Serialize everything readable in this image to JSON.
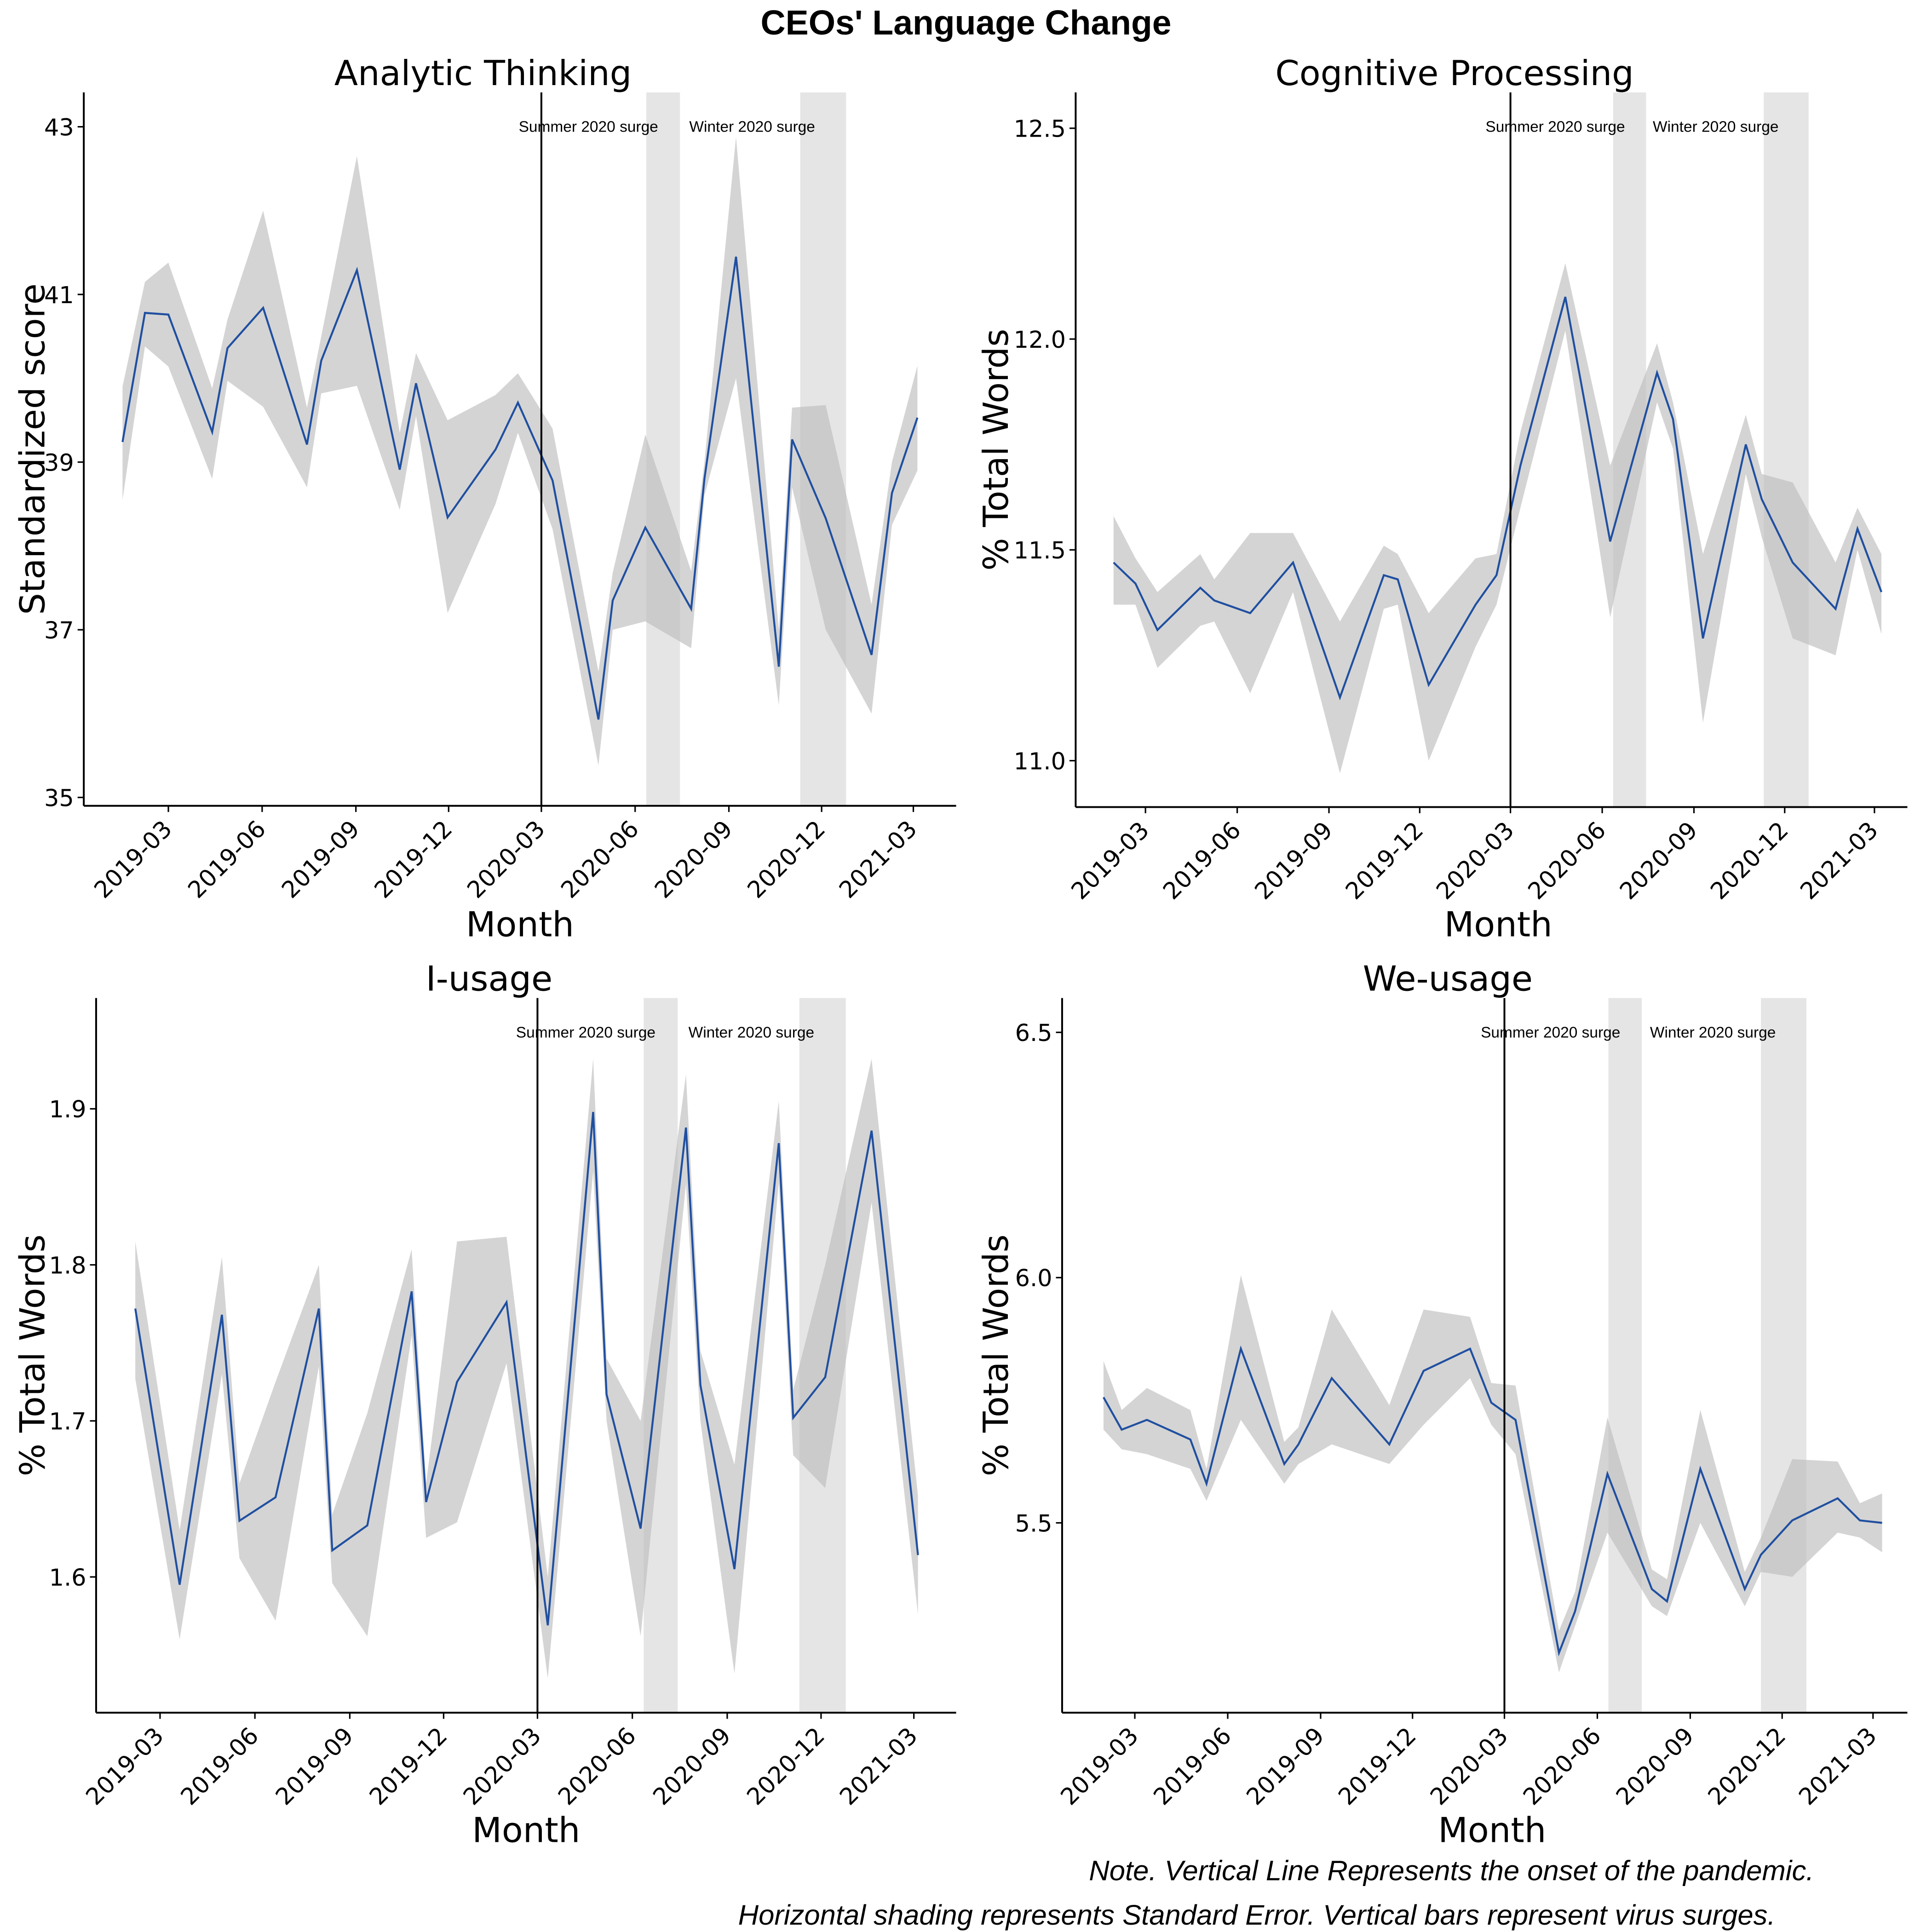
{
  "title": "CEOs' Language Change",
  "notes": [
    "Note. Vertical Line Represents the onset of the pandemic.",
    "Horizontal shading represents Standard Error. Vertical bars represent virus surges."
  ],
  "colors": {
    "line": "#1f4fa0",
    "band": "#bdbdbd",
    "surge": "#e5e5e5",
    "onset": "#000000"
  },
  "chart_data": [
    {
      "type": "line",
      "title": "Analytic Thinking",
      "xlabel": "Month",
      "ylabel": "Standardized score",
      "ylim": [
        34.9,
        43.41
      ],
      "xlim": [
        "2018-12-08",
        "2021-04-12"
      ],
      "yticks": [
        35,
        37,
        39,
        41,
        43
      ],
      "xticks": [
        "2019-03",
        "2019-06",
        "2019-09",
        "2019-12",
        "2020-03",
        "2020-06",
        "2020-09",
        "2020-12",
        "2021-03"
      ],
      "onset": "2020-03-01",
      "surges": [
        {
          "label": "Summer 2020 surge",
          "start": "2020-06-12",
          "end": "2020-07-15"
        },
        {
          "label": "Winter 2020 surge",
          "start": "2020-11-10",
          "end": "2020-12-25"
        }
      ],
      "x": [
        "2019-01-15",
        "2019-02-06",
        "2019-03-01",
        "2019-04-13",
        "2019-04-28",
        "2019-06-02",
        "2019-07-15",
        "2019-07-29",
        "2019-09-02",
        "2019-10-14",
        "2019-10-30",
        "2019-11-30",
        "2020-01-16",
        "2020-02-07",
        "2020-03-12",
        "2020-04-26",
        "2020-05-10",
        "2020-06-11",
        "2020-07-26",
        "2020-08-08",
        "2020-09-08",
        "2020-10-20",
        "2020-11-02",
        "2020-12-05",
        "2021-01-19",
        "2021-02-08",
        "2021-03-05"
      ],
      "y": [
        39.24,
        40.78,
        40.76,
        39.36,
        40.36,
        40.84,
        39.21,
        40.21,
        41.29,
        38.91,
        39.94,
        38.34,
        39.15,
        39.71,
        38.78,
        35.93,
        37.35,
        38.22,
        37.25,
        38.8,
        41.45,
        36.56,
        39.27,
        38.33,
        36.7,
        38.63,
        39.53
      ],
      "lower": [
        38.55,
        40.38,
        40.14,
        38.8,
        39.97,
        39.66,
        38.7,
        39.82,
        39.91,
        38.43,
        39.55,
        37.2,
        38.5,
        39.35,
        38.2,
        35.38,
        37.0,
        37.1,
        36.78,
        38.6,
        40.0,
        36.1,
        38.7,
        37.0,
        36.0,
        38.25,
        38.9
      ],
      "upper": [
        39.9,
        41.15,
        41.38,
        39.88,
        40.7,
        42.0,
        39.65,
        40.5,
        42.65,
        39.35,
        40.3,
        39.5,
        39.8,
        40.06,
        39.4,
        36.5,
        37.68,
        39.33,
        37.7,
        39.0,
        42.88,
        37.0,
        39.65,
        39.68,
        37.3,
        39.0,
        40.15
      ]
    },
    {
      "type": "line",
      "title": "Cognitive Processing",
      "xlabel": "Month",
      "ylabel": "% Total Words",
      "ylim": [
        10.89,
        12.585
      ],
      "xlim": [
        "2018-12-21",
        "2021-04-03"
      ],
      "yticks": [
        11.0,
        11.5,
        12.0,
        12.5
      ],
      "ytick_labels": [
        "11.0",
        "11.5",
        "12.0",
        "12.5"
      ],
      "xticks": [
        "2019-03",
        "2019-06",
        "2019-09",
        "2019-12",
        "2020-03",
        "2020-06",
        "2020-09",
        "2020-12",
        "2021-03"
      ],
      "onset": "2020-03-01",
      "surges": [
        {
          "label": "Summer 2020 surge",
          "start": "2020-06-12",
          "end": "2020-07-15"
        },
        {
          "label": "Winter 2020 surge",
          "start": "2020-11-10",
          "end": "2020-12-25"
        }
      ],
      "x": [
        "2019-01-28",
        "2019-02-19",
        "2019-03-13",
        "2019-04-25",
        "2019-05-09",
        "2019-06-14",
        "2019-07-27",
        "2019-09-12",
        "2019-10-26",
        "2019-11-09",
        "2019-12-10",
        "2020-01-26",
        "2020-02-16",
        "2020-03-11",
        "2020-04-25",
        "2020-06-09",
        "2020-07-26",
        "2020-08-11",
        "2020-09-10",
        "2020-10-23",
        "2020-11-08",
        "2020-12-09",
        "2021-01-21",
        "2021-02-12",
        "2021-03-08"
      ],
      "y": [
        11.47,
        11.42,
        11.31,
        11.41,
        11.38,
        11.35,
        11.47,
        11.15,
        11.44,
        11.43,
        11.18,
        11.37,
        11.44,
        11.7,
        12.1,
        11.52,
        11.92,
        11.81,
        11.29,
        11.75,
        11.62,
        11.47,
        11.36,
        11.55,
        11.4
      ],
      "lower": [
        11.37,
        11.37,
        11.22,
        11.32,
        11.33,
        11.16,
        11.4,
        10.97,
        11.36,
        11.37,
        11.0,
        11.27,
        11.37,
        11.6,
        12.02,
        11.34,
        11.85,
        11.74,
        11.09,
        11.68,
        11.53,
        11.29,
        11.25,
        11.5,
        11.3
      ],
      "upper": [
        11.58,
        11.48,
        11.4,
        11.49,
        11.43,
        11.54,
        11.54,
        11.33,
        11.51,
        11.49,
        11.35,
        11.48,
        11.49,
        11.78,
        12.18,
        11.7,
        11.99,
        11.85,
        11.49,
        11.82,
        11.68,
        11.66,
        11.47,
        11.6,
        11.49
      ]
    },
    {
      "type": "line",
      "title": "I-usage",
      "xlabel": "Month",
      "ylabel": "% Total Words",
      "ylim": [
        1.513,
        1.971
      ],
      "xlim": [
        "2018-12-29",
        "2021-04-11"
      ],
      "yticks": [
        1.6,
        1.7,
        1.8,
        1.9
      ],
      "ytick_labels": [
        "1.6",
        "1.7",
        "1.8",
        "1.9"
      ],
      "xticks": [
        "2019-03",
        "2019-06",
        "2019-09",
        "2019-12",
        "2020-03",
        "2020-06",
        "2020-09",
        "2020-12",
        "2021-03"
      ],
      "onset": "2020-03-01",
      "surges": [
        {
          "label": "Summer 2020 surge",
          "start": "2020-06-12",
          "end": "2020-07-15"
        },
        {
          "label": "Winter 2020 surge",
          "start": "2020-11-10",
          "end": "2020-12-25"
        }
      ],
      "x": [
        "2019-02-05",
        "2019-03-20",
        "2019-04-30",
        "2019-05-17",
        "2019-06-21",
        "2019-08-02",
        "2019-08-15",
        "2019-09-18",
        "2019-10-31",
        "2019-11-14",
        "2019-12-14",
        "2020-01-31",
        "2020-03-11",
        "2020-04-24",
        "2020-05-07",
        "2020-06-09",
        "2020-07-23",
        "2020-08-06",
        "2020-09-08",
        "2020-10-21",
        "2020-11-04",
        "2020-12-05",
        "2021-01-19",
        "2021-03-05"
      ],
      "y": [
        1.772,
        1.595,
        1.768,
        1.636,
        1.651,
        1.772,
        1.617,
        1.633,
        1.783,
        1.648,
        1.725,
        1.776,
        1.569,
        1.898,
        1.717,
        1.631,
        1.888,
        1.723,
        1.605,
        1.878,
        1.702,
        1.728,
        1.886,
        1.614
      ],
      "lower": [
        1.727,
        1.56,
        1.73,
        1.612,
        1.572,
        1.735,
        1.596,
        1.562,
        1.755,
        1.625,
        1.635,
        1.737,
        1.535,
        1.86,
        1.7,
        1.562,
        1.852,
        1.7,
        1.538,
        1.853,
        1.678,
        1.657,
        1.84,
        1.576
      ],
      "upper": [
        1.815,
        1.63,
        1.805,
        1.66,
        1.725,
        1.8,
        1.64,
        1.705,
        1.81,
        1.66,
        1.815,
        1.818,
        1.6,
        1.932,
        1.74,
        1.7,
        1.922,
        1.745,
        1.672,
        1.905,
        1.72,
        1.8,
        1.932,
        1.652
      ]
    },
    {
      "type": "line",
      "title": "We-usage",
      "xlabel": "Month",
      "ylabel": "% Total Words",
      "ylim": [
        5.113,
        6.57
      ],
      "xlim": [
        "2018-12-19",
        "2021-04-04"
      ],
      "yticks": [
        5.5,
        6.0,
        6.5
      ],
      "ytick_labels": [
        "5.5",
        "6.0",
        "6.5"
      ],
      "xticks": [
        "2019-03",
        "2019-06",
        "2019-09",
        "2019-12",
        "2020-03",
        "2020-06",
        "2020-09",
        "2020-12",
        "2021-03"
      ],
      "onset": "2020-03-01",
      "surges": [
        {
          "label": "Summer 2020 surge",
          "start": "2020-06-12",
          "end": "2020-07-15"
        },
        {
          "label": "Winter 2020 surge",
          "start": "2020-11-10",
          "end": "2020-12-25"
        }
      ],
      "x": [
        "2019-01-29",
        "2019-02-16",
        "2019-03-13",
        "2019-04-25",
        "2019-05-11",
        "2019-06-14",
        "2019-07-27",
        "2019-08-10",
        "2019-09-12",
        "2019-11-08",
        "2019-12-12",
        "2020-01-27",
        "2020-02-17",
        "2020-03-12",
        "2020-04-24",
        "2020-05-10",
        "2020-06-11",
        "2020-07-25",
        "2020-08-09",
        "2020-09-11",
        "2020-10-25",
        "2020-11-10",
        "2020-12-11",
        "2021-01-25",
        "2021-02-16",
        "2021-03-10"
      ],
      "y": [
        5.756,
        5.69,
        5.71,
        5.67,
        5.58,
        5.855,
        5.62,
        5.66,
        5.795,
        5.66,
        5.81,
        5.855,
        5.745,
        5.71,
        5.235,
        5.32,
        5.6,
        5.365,
        5.34,
        5.61,
        5.365,
        5.435,
        5.505,
        5.55,
        5.505,
        5.5
      ],
      "lower": [
        5.69,
        5.65,
        5.64,
        5.61,
        5.545,
        5.71,
        5.58,
        5.62,
        5.66,
        5.62,
        5.7,
        5.795,
        5.7,
        5.64,
        5.195,
        5.29,
        5.48,
        5.33,
        5.31,
        5.5,
        5.33,
        5.4,
        5.39,
        5.48,
        5.47,
        5.44
      ],
      "upper": [
        5.83,
        5.73,
        5.775,
        5.73,
        5.61,
        6.005,
        5.665,
        5.695,
        5.935,
        5.74,
        5.935,
        5.92,
        5.785,
        5.78,
        5.28,
        5.36,
        5.715,
        5.405,
        5.385,
        5.73,
        5.4,
        5.47,
        5.63,
        5.625,
        5.54,
        5.56
      ]
    }
  ]
}
